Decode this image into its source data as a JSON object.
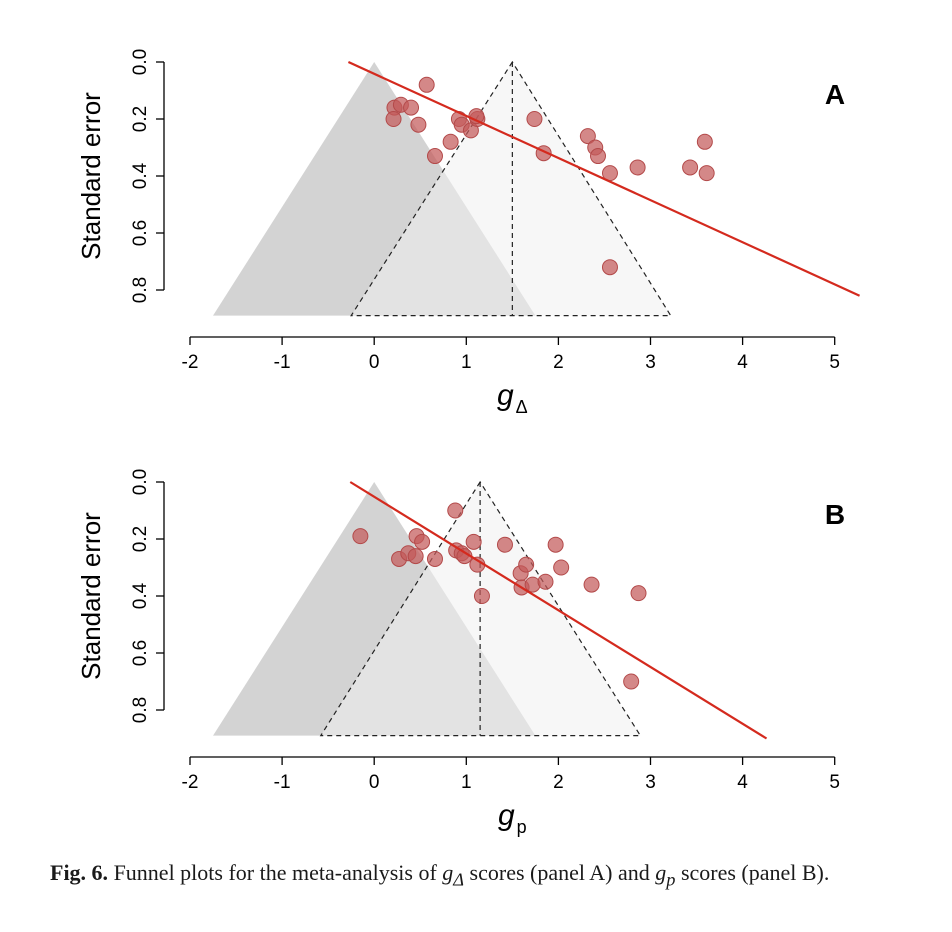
{
  "chart_data": [
    {
      "type": "scatter",
      "panel_label": "A",
      "xlabel": "g",
      "xlabel_sub": "Δ",
      "ylabel": "Standard error",
      "xlim": [
        -2,
        5
      ],
      "ylim": [
        0,
        0.8
      ],
      "y_reversed": true,
      "x_ticks": [
        -2,
        -1,
        0,
        1,
        2,
        3,
        4,
        5
      ],
      "y_ticks": [
        0.0,
        0.2,
        0.4,
        0.6,
        0.8
      ],
      "y_tick_labels": [
        "0.0",
        "0.2",
        "0.4",
        "0.6",
        "0.8"
      ],
      "null_funnel": {
        "center": 0,
        "apex_se": 0,
        "base_se": 0.89,
        "left": -1.75,
        "right": 1.75
      },
      "effect_funnel": {
        "center": 1.5,
        "apex_se": 0,
        "base_se": 0.89,
        "left": -0.25,
        "right": 3.22
      },
      "regression_line": {
        "x": [
          -0.28,
          5.27
        ],
        "y": [
          0.0,
          0.82
        ]
      },
      "points": [
        {
          "x": 0.57,
          "y": 0.08
        },
        {
          "x": 0.22,
          "y": 0.16
        },
        {
          "x": 0.29,
          "y": 0.15
        },
        {
          "x": 0.4,
          "y": 0.16
        },
        {
          "x": 0.21,
          "y": 0.2
        },
        {
          "x": 0.48,
          "y": 0.22
        },
        {
          "x": 0.92,
          "y": 0.2
        },
        {
          "x": 0.95,
          "y": 0.22
        },
        {
          "x": 1.05,
          "y": 0.24
        },
        {
          "x": 1.12,
          "y": 0.2
        },
        {
          "x": 1.11,
          "y": 0.19
        },
        {
          "x": 0.83,
          "y": 0.28
        },
        {
          "x": 0.66,
          "y": 0.33
        },
        {
          "x": 1.74,
          "y": 0.2
        },
        {
          "x": 1.84,
          "y": 0.32
        },
        {
          "x": 2.32,
          "y": 0.26
        },
        {
          "x": 2.4,
          "y": 0.3
        },
        {
          "x": 2.43,
          "y": 0.33
        },
        {
          "x": 2.56,
          "y": 0.39
        },
        {
          "x": 2.86,
          "y": 0.37
        },
        {
          "x": 3.43,
          "y": 0.37
        },
        {
          "x": 3.59,
          "y": 0.28
        },
        {
          "x": 3.61,
          "y": 0.39
        },
        {
          "x": 2.56,
          "y": 0.72
        }
      ]
    },
    {
      "type": "scatter",
      "panel_label": "B",
      "xlabel": "g",
      "xlabel_sub": "p",
      "ylabel": "Standard error",
      "xlim": [
        -2,
        5
      ],
      "ylim": [
        0,
        0.8
      ],
      "y_reversed": true,
      "x_ticks": [
        -2,
        -1,
        0,
        1,
        2,
        3,
        4,
        5
      ],
      "y_ticks": [
        0.0,
        0.2,
        0.4,
        0.6,
        0.8
      ],
      "y_tick_labels": [
        "0.0",
        "0.2",
        "0.4",
        "0.6",
        "0.8"
      ],
      "null_funnel": {
        "center": 0,
        "apex_se": 0,
        "base_se": 0.89,
        "left": -1.75,
        "right": 1.75
      },
      "effect_funnel": {
        "center": 1.15,
        "apex_se": 0,
        "base_se": 0.89,
        "left": -0.58,
        "right": 2.89
      },
      "regression_line": {
        "x": [
          -0.26,
          4.26
        ],
        "y": [
          0.0,
          0.9
        ]
      },
      "points": [
        {
          "x": -0.15,
          "y": 0.19
        },
        {
          "x": 0.27,
          "y": 0.27
        },
        {
          "x": 0.37,
          "y": 0.25
        },
        {
          "x": 0.45,
          "y": 0.26
        },
        {
          "x": 0.46,
          "y": 0.19
        },
        {
          "x": 0.52,
          "y": 0.21
        },
        {
          "x": 0.66,
          "y": 0.27
        },
        {
          "x": 0.88,
          "y": 0.1
        },
        {
          "x": 0.89,
          "y": 0.24
        },
        {
          "x": 0.95,
          "y": 0.25
        },
        {
          "x": 0.98,
          "y": 0.26
        },
        {
          "x": 1.08,
          "y": 0.21
        },
        {
          "x": 1.12,
          "y": 0.29
        },
        {
          "x": 1.17,
          "y": 0.4
        },
        {
          "x": 1.42,
          "y": 0.22
        },
        {
          "x": 1.59,
          "y": 0.32
        },
        {
          "x": 1.65,
          "y": 0.29
        },
        {
          "x": 1.6,
          "y": 0.37
        },
        {
          "x": 1.72,
          "y": 0.36
        },
        {
          "x": 1.86,
          "y": 0.35
        },
        {
          "x": 1.97,
          "y": 0.22
        },
        {
          "x": 2.03,
          "y": 0.3
        },
        {
          "x": 2.36,
          "y": 0.36
        },
        {
          "x": 2.87,
          "y": 0.39
        },
        {
          "x": 2.79,
          "y": 0.7
        }
      ]
    }
  ],
  "caption": {
    "fig_label": "Fig. 6.",
    "text_1": " Funnel plots for the meta-analysis of ",
    "g1": "g",
    "g1_sub": "Δ",
    "text_2": " scores (panel A) and ",
    "g2": "g",
    "g2_sub": "p",
    "text_3": " scores (panel B)."
  },
  "colors": {
    "null_funnel_fill": "#d3d3d3",
    "effect_funnel_fill": "#f1f1f1",
    "point_fill": "#c45a5a",
    "point_stroke": "#b34a4a",
    "regression": "#d42a1e",
    "axis": "#000000"
  }
}
